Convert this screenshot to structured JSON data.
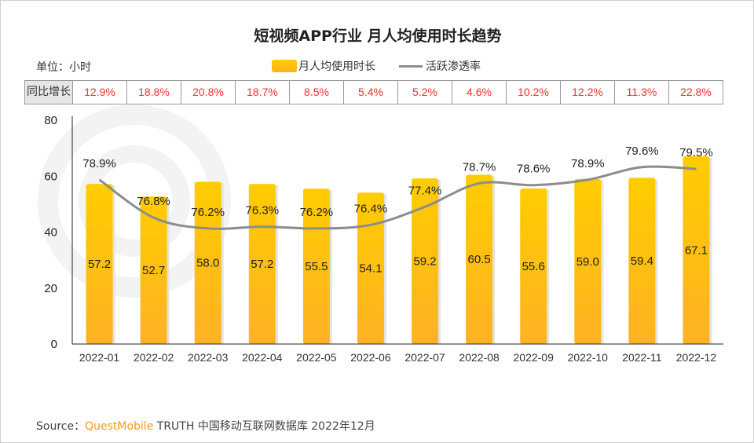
{
  "title": "短视频APP行业 月人均使用时长趋势",
  "unit": "单位：小时",
  "yoy": {
    "label": "同比增长",
    "values": [
      "12.9%",
      "18.8%",
      "20.8%",
      "18.7%",
      "8.5%",
      "5.4%",
      "5.2%",
      "4.6%",
      "10.2%",
      "12.2%",
      "11.3%",
      "22.8%"
    ],
    "color": "#ff2d2d"
  },
  "source": {
    "prefix": "Source：",
    "brand": "QuestMobile",
    "rest": "TRUTH 中国移动互联网数据库 2022年12月"
  },
  "watermark": "QUESTMOBILE",
  "chart_data": {
    "type": "bar+line",
    "title": "短视频APP行业 月人均使用时长趋势",
    "categories": [
      "2022-01",
      "2022-02",
      "2022-03",
      "2022-04",
      "2022-05",
      "2022-06",
      "2022-07",
      "2022-08",
      "2022-09",
      "2022-10",
      "2022-11",
      "2022-12"
    ],
    "series": [
      {
        "name": "月人均使用时长",
        "type": "bar",
        "values": [
          57.2,
          52.7,
          58.0,
          57.2,
          55.5,
          54.1,
          59.2,
          60.5,
          55.6,
          59.0,
          59.4,
          67.1
        ],
        "labels": [
          "57.2",
          "52.7",
          "58.0",
          "57.2",
          "55.5",
          "54.1",
          "59.2",
          "60.5",
          "55.6",
          "59.0",
          "59.4",
          "67.1"
        ],
        "color": "#ffbf1a"
      },
      {
        "name": "活跃渗透率",
        "type": "line",
        "values": [
          78.9,
          76.8,
          76.2,
          76.3,
          76.2,
          76.4,
          77.4,
          78.7,
          78.6,
          78.9,
          79.6,
          79.5
        ],
        "labels": [
          "78.9%",
          "76.8%",
          "76.2%",
          "76.3%",
          "76.2%",
          "76.4%",
          "77.4%",
          "78.7%",
          "78.6%",
          "78.9%",
          "79.6%",
          "79.5%"
        ],
        "color": "#8c8c8c"
      }
    ],
    "ylim": [
      0,
      80
    ],
    "yticks": [
      "0",
      "20",
      "40",
      "60",
      "80"
    ],
    "legend": "top-center",
    "grid": false
  }
}
